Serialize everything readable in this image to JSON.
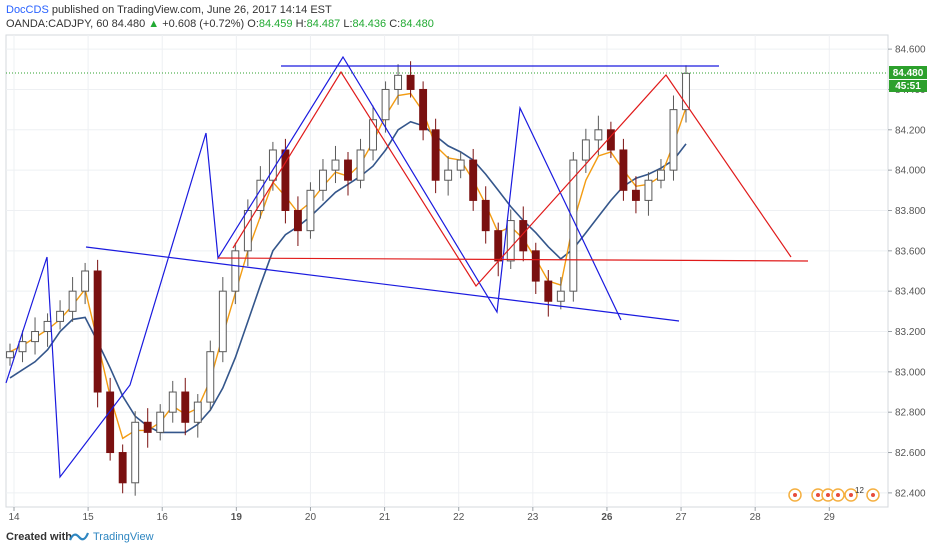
{
  "header": {
    "author": "DocCDS",
    "published_text": "published on TradingView.com, June 26, 2017 14:14 EST",
    "symbol": "OANDA:CADJPY, 60",
    "price": "84.480",
    "change": "+0.608 (+0.72%)",
    "open_label": "O:",
    "open": "84.459",
    "high_label": "H:",
    "high": "84.487",
    "low_label": "L:",
    "low": "84.436",
    "close_label": "C:",
    "close": "84.480"
  },
  "price_badge": {
    "price": "84.480",
    "countdown": "45:51"
  },
  "footer": {
    "created_with": "Created with",
    "brand": "TradingView"
  },
  "colors": {
    "up_candle": "#5a5a5a",
    "down_candle": "#7a1010",
    "ema_fast": "#f39c12",
    "sma_slow": "#34568b",
    "blue_lines": "#1a1adf",
    "red_lines": "#e01b1b",
    "price_badge": "#2ca02c"
  },
  "chart_data": {
    "type": "candlestick",
    "symbol": "OANDA:CADJPY",
    "interval": "60",
    "x_ticks": [
      "14",
      "15",
      "16",
      "19",
      "20",
      "21",
      "22",
      "23",
      "26",
      "27",
      "28",
      "29"
    ],
    "y_ticks": [
      "82.400",
      "82.600",
      "82.800",
      "83.000",
      "83.200",
      "83.400",
      "83.600",
      "83.800",
      "84.000",
      "84.200",
      "84.400",
      "84.600"
    ],
    "ylim": [
      82.33,
      84.67
    ],
    "xlim": [
      0,
      11.9
    ],
    "last_price": 84.48,
    "closes": [
      83.1,
      83.15,
      83.2,
      83.25,
      83.3,
      83.4,
      83.5,
      82.9,
      82.6,
      82.45,
      82.75,
      82.7,
      82.8,
      82.9,
      82.75,
      82.85,
      83.1,
      83.4,
      83.6,
      83.8,
      83.95,
      84.1,
      83.8,
      83.7,
      83.9,
      84.0,
      84.05,
      83.95,
      84.1,
      84.25,
      84.4,
      84.47,
      84.4,
      84.2,
      83.95,
      84.0,
      84.05,
      83.85,
      83.7,
      83.55,
      83.75,
      83.6,
      83.45,
      83.35,
      83.4,
      84.05,
      84.15,
      84.2,
      84.1,
      83.9,
      83.85,
      83.95,
      84.0,
      84.3,
      84.48
    ],
    "ema_fast": [
      83.1,
      83.13,
      83.17,
      83.21,
      83.26,
      83.33,
      83.41,
      83.15,
      82.88,
      82.67,
      82.71,
      82.71,
      82.75,
      82.83,
      82.79,
      82.82,
      82.96,
      83.18,
      83.39,
      83.6,
      83.77,
      83.94,
      83.87,
      83.79,
      83.84,
      83.92,
      83.99,
      83.97,
      84.03,
      84.14,
      84.27,
      84.37,
      84.38,
      84.29,
      84.12,
      84.06,
      84.05,
      83.95,
      83.83,
      83.69,
      83.72,
      83.66,
      83.56,
      83.45,
      83.43,
      83.74,
      83.95,
      84.07,
      84.09,
      84.0,
      83.92,
      83.93,
      83.97,
      84.13,
      84.31
    ],
    "sma_slow": [
      82.97,
      83.01,
      83.05,
      83.11,
      83.2,
      83.26,
      83.27,
      83.15,
      83.02,
      82.88,
      82.78,
      82.73,
      82.7,
      82.7,
      82.7,
      82.74,
      82.81,
      82.92,
      83.07,
      83.25,
      83.43,
      83.6,
      83.68,
      83.72,
      83.77,
      83.83,
      83.89,
      83.93,
      83.97,
      84.02,
      84.1,
      84.2,
      84.24,
      84.22,
      84.17,
      84.12,
      84.09,
      84.05,
      83.98,
      83.9,
      83.82,
      83.75,
      83.69,
      83.62,
      83.56,
      83.61,
      83.69,
      83.77,
      83.85,
      83.92,
      83.96,
      83.98,
      84.01,
      84.05,
      84.13
    ]
  }
}
